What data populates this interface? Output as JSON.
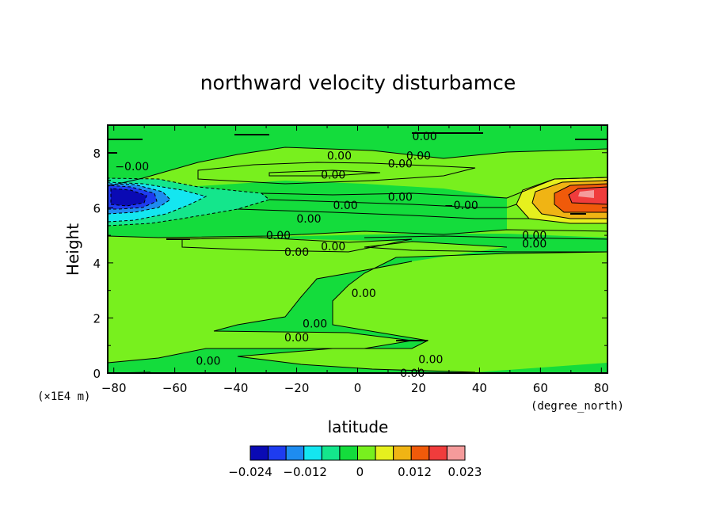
{
  "chart_data": {
    "type": "heatmap",
    "title": "northward velocity disturbamce",
    "xlabel": "latitude",
    "ylabel": "Height",
    "x_units": "(degree_north)",
    "y_units": "(x1E4 m)",
    "xlim": [
      -82,
      82
    ],
    "ylim": [
      0,
      9
    ],
    "x_ticks": [
      -80,
      -60,
      -40,
      -20,
      0,
      20,
      40,
      60,
      80
    ],
    "x_tick_labels": [
      "-80",
      "-60",
      "-40",
      "-20",
      "0",
      "20",
      "40",
      "60",
      "80"
    ],
    "y_ticks": [
      0,
      2,
      4,
      6,
      8
    ],
    "y_tick_labels": [
      "0",
      "2",
      "4",
      "6",
      "8"
    ],
    "colorbar": {
      "colors": [
        "#0a0ab4",
        "#1e3cf0",
        "#1e8cf0",
        "#14e6f0",
        "#14e68c",
        "#14dc3c",
        "#78f01e",
        "#e6f01e",
        "#f0b414",
        "#f05a0a",
        "#f03c3c",
        "#f59b9b"
      ],
      "tick_values": [
        -0.024,
        -0.012,
        0,
        0.012,
        0.023
      ],
      "tick_labels": [
        "-0.024",
        "-0.012",
        "0",
        "0.012",
        "0.023"
      ]
    },
    "contour_labels": [
      {
        "text": "0.00",
        "x": 22,
        "y": 8.6
      },
      {
        "text": "0.00",
        "x": -6,
        "y": 7.9
      },
      {
        "text": "0.00",
        "x": 20,
        "y": 7.9
      },
      {
        "text": "0.00",
        "x": 14,
        "y": 7.6
      },
      {
        "text": "-0.00",
        "x": -74,
        "y": 7.5
      },
      {
        "text": "0.00",
        "x": -8,
        "y": 7.2
      },
      {
        "text": "0.00",
        "x": 14,
        "y": 6.4
      },
      {
        "text": "0.00",
        "x": -4,
        "y": 6.1
      },
      {
        "text": "-0.00",
        "x": 34,
        "y": 6.1
      },
      {
        "text": "0.00",
        "x": -16,
        "y": 5.6
      },
      {
        "text": "0.00",
        "x": -26,
        "y": 5.0
      },
      {
        "text": "0.00",
        "x": 58,
        "y": 5.0
      },
      {
        "text": "0.00",
        "x": -20,
        "y": 4.4
      },
      {
        "text": "0.00",
        "x": -8,
        "y": 4.6
      },
      {
        "text": "0.00",
        "x": 58,
        "y": 4.7
      },
      {
        "text": "0.00",
        "x": 2,
        "y": 2.9
      },
      {
        "text": "0.00",
        "x": -14,
        "y": 1.8
      },
      {
        "text": "0.00",
        "x": -20,
        "y": 1.3
      },
      {
        "text": "0.00",
        "x": -49,
        "y": 0.45
      },
      {
        "text": "0.00",
        "x": 24,
        "y": 0.5
      },
      {
        "text": "0.00",
        "x": 18,
        "y": 0.0
      }
    ],
    "features": [
      {
        "kind": "negative_core",
        "x": -76,
        "y": 6.3,
        "value": -0.024
      },
      {
        "kind": "positive_core",
        "x": 74,
        "y": 6.3,
        "value": 0.023
      }
    ]
  }
}
